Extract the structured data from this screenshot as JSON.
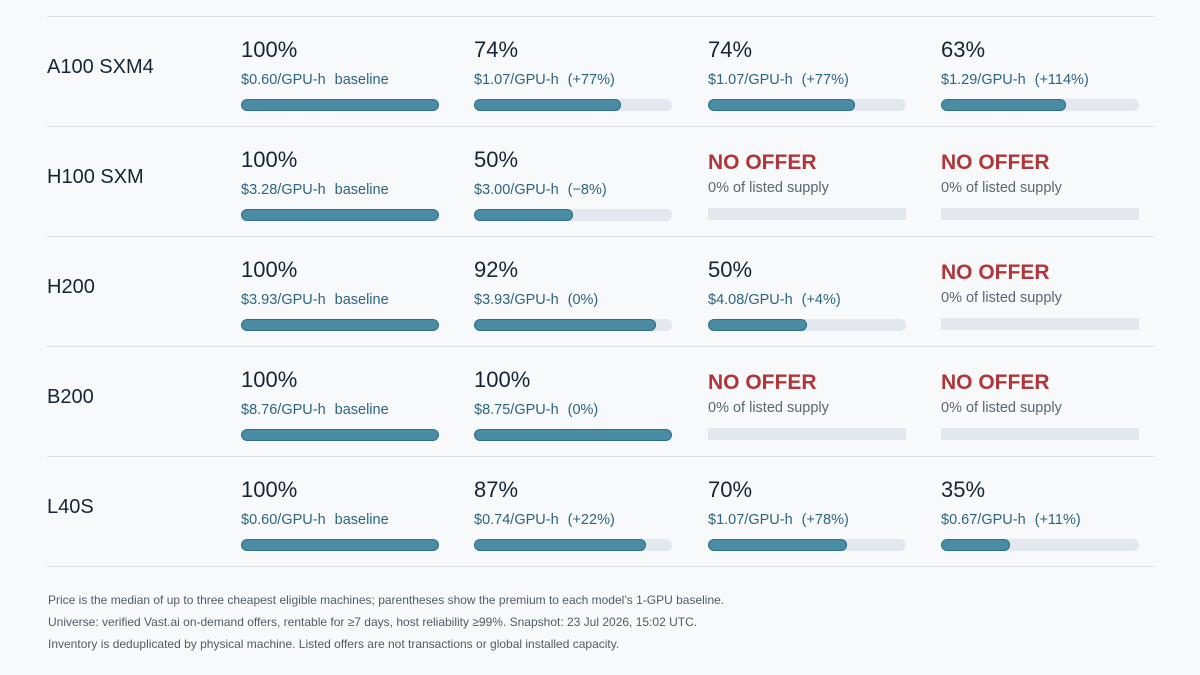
{
  "chart_data": {
    "type": "table",
    "columns": [
      "",
      "",
      "",
      "",
      ""
    ],
    "rows": [
      {
        "model": "A100 SXM4",
        "cells": [
          {
            "pct": "100%",
            "value": 1.0,
            "price": "$0.60/GPU-h",
            "premium": "baseline"
          },
          {
            "pct": "74%",
            "value": 0.74,
            "price": "$1.07/GPU-h",
            "premium": "(+77%)"
          },
          {
            "pct": "74%",
            "value": 0.74,
            "price": "$1.07/GPU-h",
            "premium": "(+77%)"
          },
          {
            "pct": "63%",
            "value": 0.63,
            "price": "$1.29/GPU-h",
            "premium": "(+114%)"
          }
        ]
      },
      {
        "model": "H100 SXM",
        "cells": [
          {
            "pct": "100%",
            "value": 1.0,
            "price": "$3.28/GPU-h",
            "premium": "baseline"
          },
          {
            "pct": "50%",
            "value": 0.5,
            "price": "$3.00/GPU-h",
            "premium": "(−8%)"
          },
          {
            "pct": "NO OFFER",
            "value": 0,
            "price": "0% of listed supply",
            "premium": "",
            "no_offer": true
          },
          {
            "pct": "NO OFFER",
            "value": 0,
            "price": "0% of listed supply",
            "premium": "",
            "no_offer": true
          }
        ]
      },
      {
        "model": "H200",
        "cells": [
          {
            "pct": "100%",
            "value": 1.0,
            "price": "$3.93/GPU-h",
            "premium": "baseline"
          },
          {
            "pct": "92%",
            "value": 0.92,
            "price": "$3.93/GPU-h",
            "premium": "(0%)"
          },
          {
            "pct": "50%",
            "value": 0.5,
            "price": "$4.08/GPU-h",
            "premium": "(+4%)"
          },
          {
            "pct": "NO OFFER",
            "value": 0,
            "price": "0% of listed supply",
            "premium": "",
            "no_offer": true
          }
        ]
      },
      {
        "model": "B200",
        "cells": [
          {
            "pct": "100%",
            "value": 1.0,
            "price": "$8.76/GPU-h",
            "premium": "baseline"
          },
          {
            "pct": "100%",
            "value": 1.0,
            "price": "$8.75/GPU-h",
            "premium": "(0%)"
          },
          {
            "pct": "NO OFFER",
            "value": 0,
            "price": "0% of listed supply",
            "premium": "",
            "no_offer": true
          },
          {
            "pct": "NO OFFER",
            "value": 0,
            "price": "0% of listed supply",
            "premium": "",
            "no_offer": true
          }
        ]
      },
      {
        "model": "L40S",
        "cells": [
          {
            "pct": "100%",
            "value": 1.0,
            "price": "$0.60/GPU-h",
            "premium": "baseline"
          },
          {
            "pct": "87%",
            "value": 0.87,
            "price": "$0.74/GPU-h",
            "premium": "(+22%)"
          },
          {
            "pct": "70%",
            "value": 0.7,
            "price": "$1.07/GPU-h",
            "premium": "(+78%)"
          },
          {
            "pct": "35%",
            "value": 0.35,
            "price": "$0.67/GPU-h",
            "premium": "(+11%)"
          }
        ]
      }
    ],
    "colors": {
      "bar": "#4a8ca4",
      "track": "#e3e8ee",
      "no_offer": "#b0363a",
      "price_text": "#2c6580"
    }
  },
  "footnotes": [
    "Price is the median of up to three cheapest eligible machines; parentheses show the premium to each model’s 1-GPU baseline.",
    "Universe: verified Vast.ai on-demand offers, rentable for ≥7 days, host reliability ≥99%. Snapshot: 23 Jul 2026, 15:02 UTC.",
    "Inventory is deduplicated by physical machine. Listed offers are not transactions or global installed capacity."
  ]
}
